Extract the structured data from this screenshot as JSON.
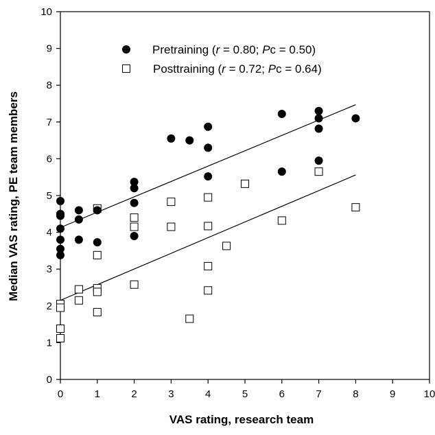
{
  "chart_data": {
    "type": "scatter",
    "title": "",
    "xlabel": "VAS rating, research team",
    "ylabel": "Median VAS rating, PE team members",
    "xlim": [
      0,
      10
    ],
    "ylim": [
      0,
      10
    ],
    "xticks": [
      "0",
      "1",
      "2",
      "3",
      "4",
      "5",
      "6",
      "7",
      "8",
      "9",
      "10"
    ],
    "yticks": [
      "0",
      "1",
      "2",
      "3",
      "4",
      "5",
      "6",
      "7",
      "8",
      "9",
      "10"
    ],
    "grid": false,
    "legend_position": "top",
    "series": [
      {
        "name": "Pretraining",
        "stats": {
          "r_label": "r",
          "r_value": "0.80",
          "p_label": "P",
          "p_sub": "c",
          "p_value": "0.50"
        },
        "marker": "filled-circle",
        "color": "#000000",
        "points": [
          [
            0,
            4.85
          ],
          [
            0,
            4.5
          ],
          [
            0,
            4.45
          ],
          [
            0,
            4.1
          ],
          [
            0,
            3.8
          ],
          [
            0,
            3.55
          ],
          [
            0,
            3.38
          ],
          [
            0.5,
            4.6
          ],
          [
            0.5,
            4.35
          ],
          [
            0.5,
            3.8
          ],
          [
            1,
            4.6
          ],
          [
            1,
            3.73
          ],
          [
            2,
            5.37
          ],
          [
            2,
            5.2
          ],
          [
            2,
            4.8
          ],
          [
            2,
            3.9
          ],
          [
            3,
            6.55
          ],
          [
            3.5,
            6.5
          ],
          [
            4,
            6.87
          ],
          [
            4,
            6.3
          ],
          [
            4,
            5.52
          ],
          [
            6,
            7.22
          ],
          [
            6,
            5.65
          ],
          [
            7,
            7.3
          ],
          [
            7,
            7.1
          ],
          [
            7,
            6.82
          ],
          [
            7,
            5.95
          ],
          [
            8,
            7.1
          ]
        ],
        "regression": {
          "x_start": 0,
          "y_start": 4.13,
          "x_end": 8,
          "y_end": 7.47
        }
      },
      {
        "name": "Posttraining",
        "stats": {
          "r_label": "r",
          "r_value": "0.72",
          "p_label": "P",
          "p_sub": "c",
          "p_value": "0.64"
        },
        "marker": "open-square",
        "color": "#000000",
        "points": [
          [
            0,
            2.05
          ],
          [
            0,
            1.95
          ],
          [
            0,
            1.38
          ],
          [
            0,
            1.12
          ],
          [
            0.5,
            2.45
          ],
          [
            0.5,
            2.15
          ],
          [
            1,
            4.65
          ],
          [
            1,
            3.38
          ],
          [
            1,
            2.48
          ],
          [
            1,
            2.38
          ],
          [
            1,
            1.83
          ],
          [
            2,
            4.4
          ],
          [
            2,
            4.15
          ],
          [
            2,
            2.58
          ],
          [
            3,
            4.83
          ],
          [
            3,
            4.15
          ],
          [
            3.5,
            1.65
          ],
          [
            4,
            4.95
          ],
          [
            4,
            4.17
          ],
          [
            4,
            3.08
          ],
          [
            4,
            2.42
          ],
          [
            4.5,
            3.63
          ],
          [
            5,
            5.32
          ],
          [
            6,
            4.32
          ],
          [
            7,
            5.65
          ],
          [
            8,
            4.68
          ]
        ],
        "regression": {
          "x_start": 0,
          "y_start": 2.15,
          "x_end": 8,
          "y_end": 5.56
        }
      }
    ]
  }
}
